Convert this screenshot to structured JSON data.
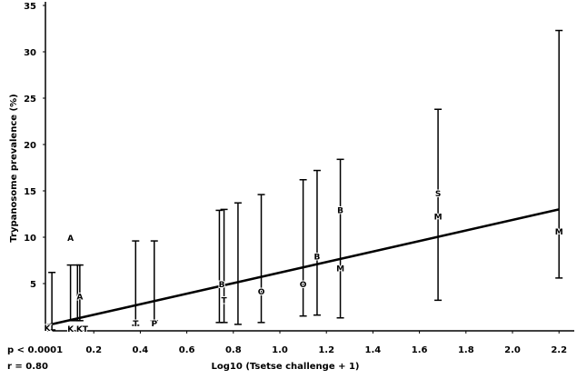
{
  "chart_data": {
    "type": "scatter",
    "title": "",
    "xlabel": "Log10 (Tsetse challenge + 1)",
    "ylabel": "Trypanosome prevalence     (%)",
    "xlim": [
      0,
      2.2
    ],
    "ylim": [
      0,
      35
    ],
    "x_ticks": [
      0.2,
      0.4,
      0.6,
      0.8,
      1.0,
      1.2,
      1.4,
      1.6,
      1.8,
      2.0,
      2.2
    ],
    "x_tick_labels": [
      "0.2",
      "0.4",
      "0.6",
      "0.8",
      "1.0",
      "1.2",
      "1.4",
      "1.6",
      "1.8",
      "2.0",
      "2.2"
    ],
    "y_ticks": [
      5,
      10,
      15,
      20,
      25,
      30,
      35
    ],
    "y_tick_labels": [
      "5",
      "10",
      "15",
      "20",
      "25",
      "30",
      "35"
    ],
    "grid": false,
    "annotations": [
      "p < 0.0001",
      "r = 0.80"
    ],
    "regression_line": {
      "x": [
        0.0,
        2.2
      ],
      "y": [
        0.5,
        13.0
      ]
    },
    "error_bars": [
      {
        "x": 0.02,
        "low": 0.0,
        "high": 6.2
      },
      {
        "x": 0.1,
        "low": 1.0,
        "high": 7.0
      },
      {
        "x": 0.13,
        "low": 1.0,
        "high": 7.0
      },
      {
        "x": 0.14,
        "low": 1.0,
        "high": 7.0
      },
      {
        "x": 0.38,
        "low": 0.5,
        "high": 9.6
      },
      {
        "x": 0.46,
        "low": 1.0,
        "high": 9.6
      },
      {
        "x": 0.74,
        "low": 0.8,
        "high": 12.9
      },
      {
        "x": 0.76,
        "low": 0.8,
        "high": 13.0
      },
      {
        "x": 0.82,
        "low": 0.6,
        "high": 13.7
      },
      {
        "x": 0.92,
        "low": 0.8,
        "high": 14.6
      },
      {
        "x": 1.1,
        "low": 1.5,
        "high": 16.2
      },
      {
        "x": 1.16,
        "low": 1.6,
        "high": 17.2
      },
      {
        "x": 1.26,
        "low": 1.3,
        "high": 18.4
      },
      {
        "x": 1.68,
        "low": 3.2,
        "high": 23.8
      },
      {
        "x": 2.2,
        "low": 5.6,
        "high": 32.3
      }
    ],
    "points": [
      {
        "label": "K",
        "x": 0.0,
        "y": 0.3
      },
      {
        "label": "A",
        "x": 0.1,
        "y": 10.0
      },
      {
        "label": "K",
        "x": 0.1,
        "y": 0.2
      },
      {
        "label": "A",
        "x": 0.14,
        "y": 3.7
      },
      {
        "label": "KT",
        "x": 0.15,
        "y": 0.2
      },
      {
        "label": "T",
        "x": 0.38,
        "y": 0.8
      },
      {
        "label": "P",
        "x": 0.46,
        "y": 0.8
      },
      {
        "label": "B",
        "x": 0.75,
        "y": 5.0
      },
      {
        "label": "T",
        "x": 0.76,
        "y": 3.3
      },
      {
        "label": "O",
        "x": 0.92,
        "y": 4.2
      },
      {
        "label": "O",
        "x": 1.1,
        "y": 5.0
      },
      {
        "label": "B",
        "x": 1.16,
        "y": 8.0
      },
      {
        "label": "B",
        "x": 1.26,
        "y": 13.0
      },
      {
        "label": "M",
        "x": 1.26,
        "y": 6.7
      },
      {
        "label": "S",
        "x": 1.68,
        "y": 14.8
      },
      {
        "label": "M",
        "x": 1.68,
        "y": 12.3
      },
      {
        "label": "M",
        "x": 2.2,
        "y": 10.7
      }
    ]
  }
}
